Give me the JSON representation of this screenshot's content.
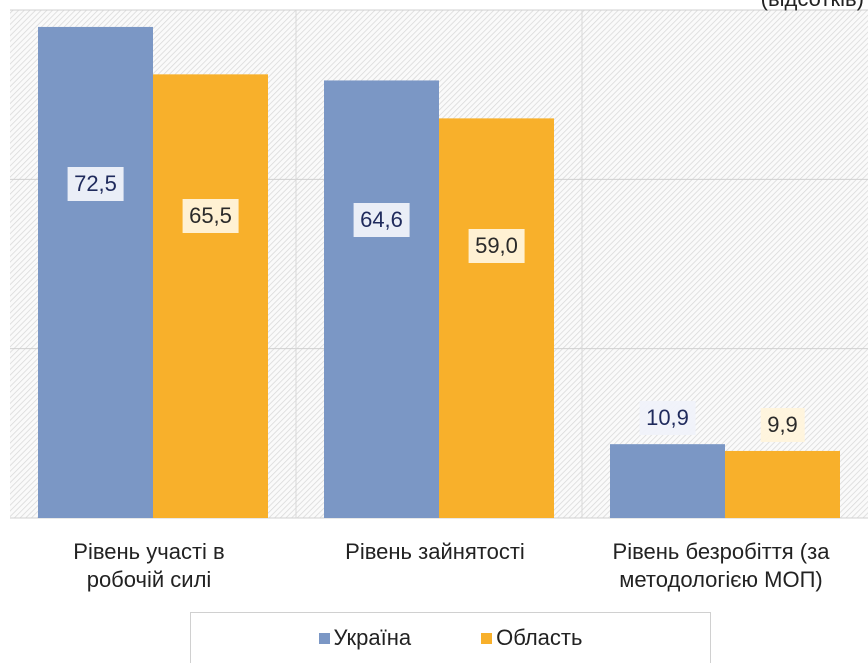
{
  "chart_data": {
    "type": "bar",
    "subtitle": "(відсотків)",
    "categories": [
      "Рівень участі  в\nробочій силі",
      "Рівень зайнятості",
      "Рівень безробіття (за\nметодологією МОП)"
    ],
    "series": [
      {
        "name": "Україна",
        "color": "#7b97c5",
        "values": [
          72.5,
          64.6,
          10.9
        ],
        "value_labels": [
          "72,5",
          "64,6",
          "10,9"
        ]
      },
      {
        "name": "Область",
        "color": "#f8b02b",
        "values": [
          65.5,
          59.0,
          9.9
        ],
        "value_labels": [
          "65,5",
          "59,0",
          "9,9"
        ]
      }
    ],
    "ylim": [
      0,
      75
    ],
    "yticks": [
      0,
      25,
      50,
      75
    ],
    "grid": true
  }
}
